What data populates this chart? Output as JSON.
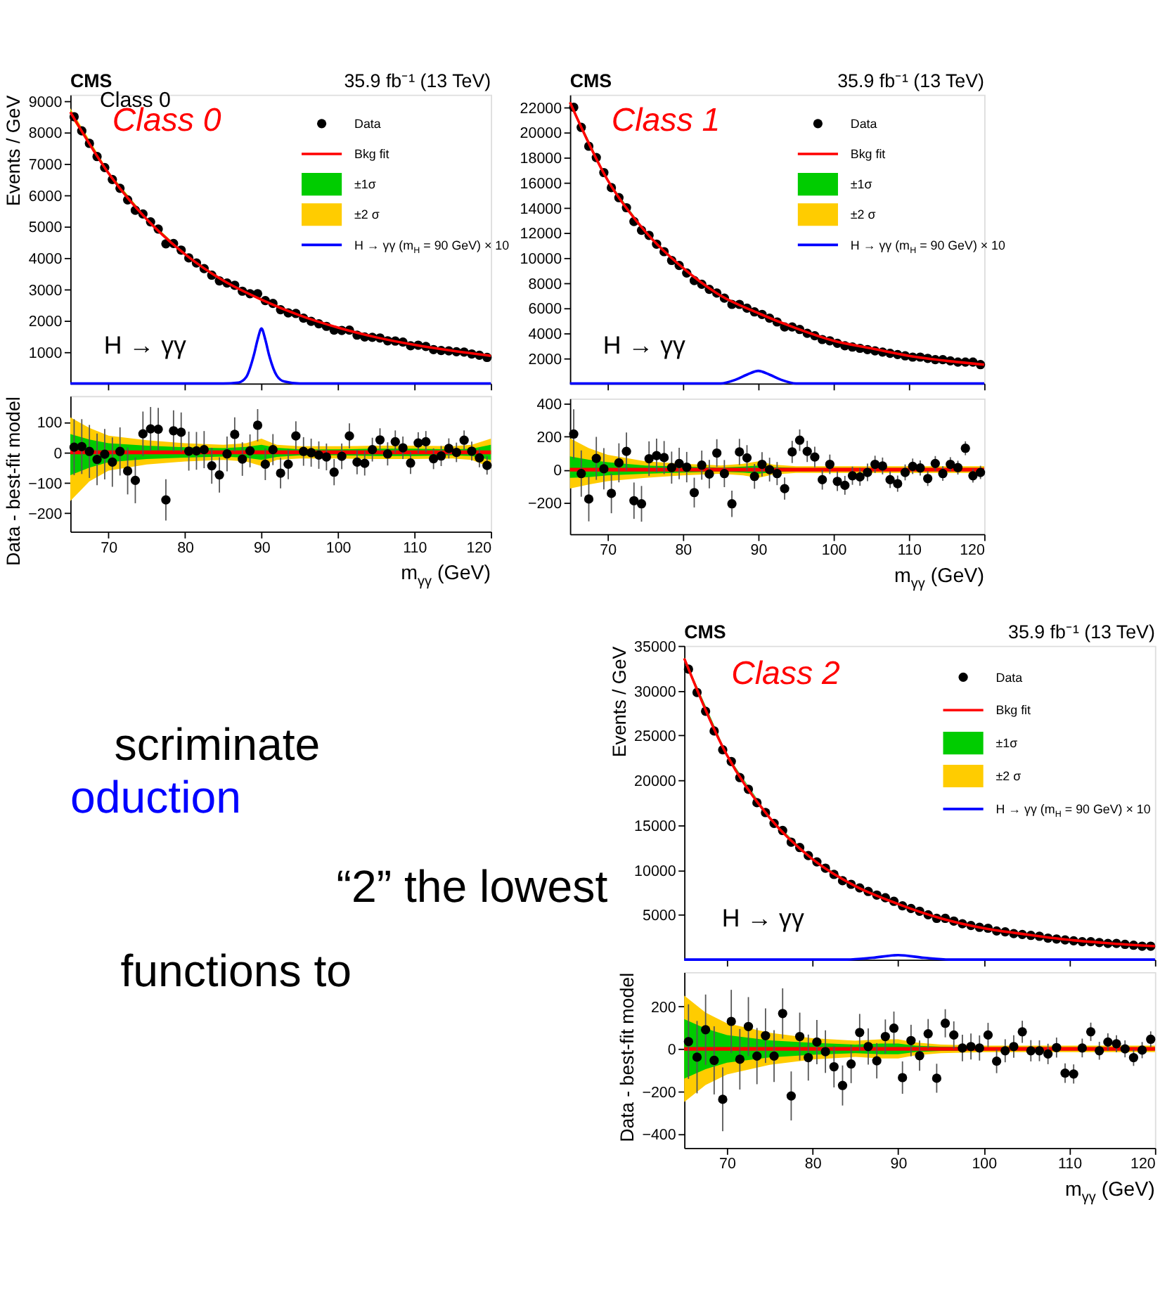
{
  "chart_data": [
    {
      "type": "scatter",
      "title": "CMS",
      "subtitle": "35.9 fb⁻¹ (13 TeV)",
      "ylabel": "Events / GeV",
      "annotations": [
        "Class 0",
        "Class 0",
        "H → γγ"
      ],
      "xlim": [
        65,
        120
      ],
      "xticks": [
        70,
        80,
        90,
        100,
        110,
        120
      ],
      "ylim": [
        0,
        9200
      ],
      "yticks": [
        1000,
        2000,
        3000,
        4000,
        5000,
        6000,
        7000,
        8000,
        9000
      ],
      "tick_labels": "y",
      "legend": "top right",
      "x": [
        65.5,
        66.5,
        67.5,
        68.5,
        69.5,
        70.5,
        71.5,
        72.5,
        73.5,
        74.5,
        75.5,
        76.5,
        77.5,
        78.5,
        79.5,
        80.5,
        81.5,
        82.5,
        83.5,
        84.5,
        85.5,
        86.5,
        87.5,
        88.5,
        89.5,
        90.5,
        91.5,
        92.5,
        93.5,
        94.5,
        95.5,
        96.5,
        97.5,
        98.5,
        99.5,
        100.5,
        101.5,
        102.5,
        103.5,
        104.5,
        105.5,
        106.5,
        107.5,
        108.5,
        109.5,
        110.5,
        111.5,
        112.5,
        113.5,
        114.5,
        115.5,
        116.5,
        117.5,
        118.5,
        119.5
      ],
      "series": [
        {
          "name": "Data",
          "type": "scatter",
          "marker": "circle",
          "color": "#000000",
          "values": [
            8500,
            8050,
            7650,
            7230,
            6880,
            6500,
            6220,
            5850,
            5520,
            5400,
            5150,
            4920,
            4450,
            4460,
            4250,
            4000,
            3840,
            3660,
            3450,
            3270,
            3200,
            3130,
            2940,
            2860,
            2860,
            2640,
            2550,
            2350,
            2250,
            2230,
            2080,
            1980,
            1900,
            1820,
            1700,
            1690,
            1700,
            1540,
            1480,
            1470,
            1450,
            1360,
            1350,
            1320,
            1200,
            1220,
            1180,
            1080,
            1050,
            1040,
            1010,
            1000,
            940,
            900,
            830
          ]
        },
        {
          "name": "Bkg fit",
          "type": "line",
          "color": "#ff0000",
          "x": [
            65,
            70,
            75,
            80,
            85,
            90,
            95,
            100,
            105,
            110,
            115,
            120
          ],
          "values": [
            8650,
            6700,
            5230,
            4120,
            3280,
            2670,
            2170,
            1780,
            1470,
            1230,
            1040,
            880
          ]
        },
        {
          "name": "±1σ",
          "type": "line",
          "color": "#00cc00",
          "x": [
            65,
            70,
            75,
            80,
            85,
            90,
            95,
            100,
            105,
            110,
            115,
            120
          ],
          "values": [
            null,
            null,
            null,
            null,
            null,
            null,
            null,
            null,
            null,
            null,
            null,
            null
          ],
          "lower": [
            8590,
            6670,
            5208,
            4103,
            3266,
            2645,
            2160,
            1770,
            1458,
            1218,
            1030,
            855
          ],
          "upper": [
            8710,
            6730,
            5252,
            4137,
            3294,
            2695,
            2180,
            1790,
            1482,
            1242,
            1050,
            905
          ]
        },
        {
          "name": "±2 σ",
          "type": "line",
          "color": "#ffcc00",
          "x": [
            65,
            70,
            75,
            80,
            85,
            90,
            95,
            100,
            105,
            110,
            115,
            120
          ],
          "values": [
            null,
            null,
            null,
            null,
            null,
            null,
            null,
            null,
            null,
            null,
            null,
            null
          ],
          "lower": [
            8530,
            6645,
            5190,
            4090,
            3255,
            2625,
            2150,
            1760,
            1448,
            1208,
            1020,
            835
          ],
          "upper": [
            8770,
            6755,
            5270,
            4150,
            3305,
            2715,
            2190,
            1800,
            1492,
            1252,
            1060,
            925
          ]
        },
        {
          "name": "H → γγ (m$_{H}$ = 90 GeV) × 10",
          "type": "line",
          "color": "#0000ff",
          "x": [
            65,
            85,
            87,
            88,
            89,
            89.5,
            90,
            90.5,
            91,
            92,
            93,
            95,
            120
          ],
          "values": [
            0,
            0,
            30,
            200,
            900,
            1400,
            1750,
            1400,
            900,
            250,
            60,
            0,
            0
          ]
        }
      ]
    },
    {
      "type": "scatter",
      "xlabel": "m$_{γγ}$ (GeV)",
      "ylabel": "Data - best-fit model",
      "xlim": [
        65,
        120
      ],
      "xticks": [
        70,
        80,
        90,
        100,
        110,
        120
      ],
      "ylim": [
        -260,
        185
      ],
      "yticks": [
        -200,
        -100,
        0,
        100
      ],
      "x": [
        65.5,
        66.5,
        67.5,
        68.5,
        69.5,
        70.5,
        71.5,
        72.5,
        73.5,
        74.5,
        75.5,
        76.5,
        77.5,
        78.5,
        79.5,
        80.5,
        81.5,
        82.5,
        83.5,
        84.5,
        85.5,
        86.5,
        87.5,
        88.5,
        89.5,
        90.5,
        91.5,
        92.5,
        93.5,
        94.5,
        95.5,
        96.5,
        97.5,
        98.5,
        99.5,
        100.5,
        101.5,
        102.5,
        103.5,
        104.5,
        105.5,
        106.5,
        107.5,
        108.5,
        109.5,
        110.5,
        111.5,
        112.5,
        113.5,
        114.5,
        115.5,
        116.5,
        117.5,
        118.5,
        119.5
      ],
      "ref_lines": [
        {
          "axis": "y",
          "value": 0,
          "color": "#ff0000"
        }
      ],
      "series": [
        {
          "type": "line",
          "color": "#ffcc00",
          "x": [
            65,
            67.5,
            70,
            75,
            80,
            85,
            88,
            90,
            92,
            95,
            100,
            105,
            110,
            115,
            117.5,
            120
          ],
          "values": [
            null,
            null,
            null,
            null,
            null,
            null,
            null,
            null,
            null,
            null,
            null,
            null,
            null,
            null,
            null,
            null
          ],
          "lower": [
            -160,
            -95,
            -60,
            -40,
            -30,
            -25,
            -30,
            -45,
            -25,
            -20,
            -20,
            -22,
            -22,
            -20,
            -25,
            -50
          ],
          "upper": [
            115,
            80,
            55,
            40,
            30,
            25,
            30,
            45,
            25,
            20,
            20,
            22,
            22,
            20,
            25,
            45
          ]
        },
        {
          "type": "line",
          "color": "#00cc00",
          "x": [
            65,
            67.5,
            70,
            75,
            80,
            85,
            88,
            90,
            92,
            95,
            100,
            105,
            110,
            115,
            117.5,
            120
          ],
          "values": [
            null,
            null,
            null,
            null,
            null,
            null,
            null,
            null,
            null,
            null,
            null,
            null,
            null,
            null,
            null,
            null
          ],
          "lower": [
            -75,
            -50,
            -32,
            -22,
            -17,
            -14,
            -18,
            -25,
            -15,
            -10,
            -10,
            -12,
            -12,
            -10,
            -12,
            -25
          ],
          "upper": [
            60,
            42,
            30,
            22,
            17,
            14,
            18,
            25,
            15,
            10,
            10,
            12,
            12,
            10,
            12,
            25
          ]
        },
        {
          "type": "scatter",
          "marker": "circle",
          "color": "#000000",
          "values": [
            17,
            19,
            3,
            -23,
            -6,
            -32,
            3,
            -61,
            -92,
            61,
            77,
            76,
            -156,
            71,
            66,
            4,
            5,
            9,
            -44,
            -74,
            -5,
            59,
            -22,
            5,
            89,
            -39,
            9,
            -68,
            -39,
            54,
            3,
            -1,
            -9,
            -15,
            -65,
            -13,
            54,
            -32,
            -36,
            9,
            41,
            -5,
            35,
            15,
            -35,
            31,
            35,
            -21,
            -12,
            13,
            0,
            40,
            4,
            -18,
            -43
          ],
          "errors": [
            92,
            90,
            87,
            85,
            83,
            81,
            79,
            77,
            75,
            73,
            72,
            70,
            68,
            67,
            65,
            64,
            62,
            61,
            59,
            58,
            57,
            56,
            55,
            54,
            53,
            52,
            51,
            50,
            49,
            48,
            47,
            46,
            45,
            44,
            43,
            42,
            41,
            40,
            40,
            39,
            38,
            38,
            37,
            37,
            36,
            35,
            35,
            34,
            33,
            33,
            32,
            32,
            31,
            31,
            30
          ]
        }
      ]
    },
    {
      "type": "scatter",
      "title": "CMS",
      "subtitle": "35.9 fb⁻¹ (13 TeV)",
      "annotations": [
        "Class 1",
        "H → γγ"
      ],
      "xlim": [
        65,
        120
      ],
      "xticks": [
        70,
        80,
        90,
        100,
        110,
        120
      ],
      "ylim": [
        0,
        23000
      ],
      "yticks": [
        2000,
        4000,
        6000,
        8000,
        10000,
        12000,
        14000,
        16000,
        18000,
        20000,
        22000
      ],
      "tick_labels": "y",
      "legend": "top right",
      "x": [
        65.5,
        66.5,
        67.5,
        68.5,
        69.5,
        70.5,
        71.5,
        72.5,
        73.5,
        74.5,
        75.5,
        76.5,
        77.5,
        78.5,
        79.5,
        80.5,
        81.5,
        82.5,
        83.5,
        84.5,
        85.5,
        86.5,
        87.5,
        88.5,
        89.5,
        90.5,
        91.5,
        92.5,
        93.5,
        94.5,
        95.5,
        96.5,
        97.5,
        98.5,
        99.5,
        100.5,
        101.5,
        102.5,
        103.5,
        104.5,
        105.5,
        106.5,
        107.5,
        108.5,
        109.5,
        110.5,
        111.5,
        112.5,
        113.5,
        114.5,
        115.5,
        116.5,
        117.5,
        118.5,
        119.5
      ],
      "series": [
        {
          "name": "Data",
          "type": "scatter",
          "marker": "circle",
          "color": "#000000",
          "values": [
            22000,
            20400,
            18900,
            18000,
            16800,
            15600,
            14800,
            14000,
            12900,
            12200,
            11800,
            11100,
            10500,
            9800,
            9400,
            8800,
            8200,
            7900,
            7500,
            7200,
            6800,
            6300,
            6300,
            6000,
            5700,
            5500,
            5200,
            4900,
            4500,
            4500,
            4300,
            4000,
            3800,
            3500,
            3400,
            3200,
            3000,
            2900,
            2800,
            2700,
            2600,
            2500,
            2400,
            2300,
            2200,
            2100,
            2100,
            2000,
            1900,
            1900,
            1800,
            1700,
            1700,
            1700,
            1500
          ]
        },
        {
          "name": "Bkg fit",
          "type": "line",
          "color": "#ff0000",
          "x": [
            65,
            70,
            75,
            80,
            85,
            90,
            95,
            100,
            105,
            110,
            115,
            120
          ],
          "values": [
            22400,
            16200,
            12100,
            9200,
            7000,
            5600,
            4400,
            3400,
            2800,
            2200,
            1800,
            1500
          ]
        },
        {
          "name": "±1σ",
          "type": "line",
          "color": "#00cc00",
          "x": [
            65,
            70,
            75,
            80,
            85,
            90,
            95,
            100,
            105,
            110,
            115,
            120
          ],
          "values": [
            null,
            null,
            null,
            null,
            null,
            null,
            null,
            null,
            null,
            null,
            null,
            null
          ],
          "lower": [
            22350,
            16160,
            12075,
            9182,
            6988,
            5575,
            4390,
            3390,
            2790,
            2190,
            1790,
            1490
          ],
          "upper": [
            22480,
            16240,
            12125,
            9218,
            7012,
            5625,
            4410,
            3410,
            2810,
            2210,
            1810,
            1510
          ]
        },
        {
          "name": "±2 σ",
          "type": "area",
          "color": "#ffcc00",
          "values": [
            null,
            null,
            null,
            null,
            null,
            null,
            null,
            null,
            null,
            null,
            null,
            null,
            null,
            null,
            null,
            null,
            null,
            null,
            null,
            null,
            null,
            null,
            null,
            null,
            null,
            null,
            null,
            null,
            null,
            null,
            null,
            null,
            null,
            null,
            null,
            null,
            null,
            null,
            null,
            null,
            null,
            null,
            null,
            null,
            null,
            null,
            null,
            null,
            null,
            null,
            null,
            null,
            null,
            null,
            null
          ]
        },
        {
          "name": "H → γγ (m$_{H}$ = 90 GeV) × 10",
          "type": "line",
          "color": "#0000ff",
          "x": [
            65,
            82,
            85,
            87,
            88.5,
            90,
            91.5,
            93,
            95,
            97,
            120
          ],
          "values": [
            0,
            0,
            0,
            300,
            700,
            1000,
            700,
            300,
            0,
            0,
            0
          ]
        }
      ]
    },
    {
      "type": "scatter",
      "xlabel": "m$_{γγ}$ (GeV)",
      "xlim": [
        65,
        120
      ],
      "xticks": [
        70,
        80,
        90,
        100,
        110,
        120
      ],
      "ylim": [
        -390,
        430
      ],
      "yticks": [
        -200,
        0,
        200,
        400
      ],
      "x": [
        65.5,
        66.5,
        67.5,
        68.5,
        69.5,
        70.5,
        71.5,
        72.5,
        73.5,
        74.5,
        75.5,
        76.5,
        77.5,
        78.5,
        79.5,
        80.5,
        81.5,
        82.5,
        83.5,
        84.5,
        85.5,
        86.5,
        87.5,
        88.5,
        89.5,
        90.5,
        91.5,
        92.5,
        93.5,
        94.5,
        95.5,
        96.5,
        97.5,
        98.5,
        99.5,
        100.5,
        101.5,
        102.5,
        103.5,
        104.5,
        105.5,
        106.5,
        107.5,
        108.5,
        109.5,
        110.5,
        111.5,
        112.5,
        113.5,
        114.5,
        115.5,
        116.5,
        117.5,
        118.5,
        119.5
      ],
      "ref_lines": [
        {
          "axis": "y",
          "value": 0,
          "color": "#ff0000"
        }
      ],
      "series": [
        {
          "type": "line",
          "color": "#ffcc00",
          "x": [
            65,
            67.5,
            70,
            75,
            80,
            85,
            88,
            90,
            92,
            95,
            100,
            105,
            110,
            115,
            117.5,
            120
          ],
          "values": [
            null,
            null,
            null,
            null,
            null,
            null,
            null,
            null,
            null,
            null,
            null,
            null,
            null,
            null,
            null,
            null
          ],
          "lower": [
            -115,
            -90,
            -70,
            -50,
            -35,
            -25,
            -35,
            -50,
            -30,
            -20,
            -20,
            -20,
            -20,
            -20,
            -20,
            -20
          ],
          "upper": [
            190,
            130,
            90,
            50,
            35,
            25,
            35,
            50,
            30,
            20,
            20,
            20,
            20,
            20,
            20,
            20
          ]
        },
        {
          "type": "line",
          "color": "#00cc00",
          "x": [
            65,
            67.5,
            70,
            75,
            80,
            85,
            88,
            90,
            92,
            95,
            100,
            105,
            110,
            115,
            117.5,
            120
          ],
          "values": [
            null,
            null,
            null,
            null,
            null,
            null,
            null,
            null,
            null,
            null,
            null,
            null,
            null,
            null,
            null,
            null
          ],
          "lower": [
            -50,
            -45,
            -35,
            -25,
            -18,
            -12,
            -18,
            -25,
            -15,
            -10,
            -10,
            -10,
            -10,
            -10,
            -10,
            -10
          ],
          "upper": [
            80,
            60,
            45,
            25,
            18,
            12,
            18,
            25,
            15,
            10,
            10,
            10,
            10,
            10,
            10,
            10
          ]
        },
        {
          "type": "scatter",
          "marker": "circle",
          "color": "#000000",
          "values": [
            215,
            -24,
            -178,
            68,
            5,
            -144,
            41,
            110,
            -188,
            -207,
            66,
            85,
            73,
            12,
            37,
            15,
            -139,
            27,
            -27,
            100,
            -24,
            -207,
            107,
            71,
            -41,
            32,
            0,
            -24,
            -115,
            107,
            178,
            110,
            76,
            -61,
            32,
            -71,
            -95,
            -37,
            -44,
            -17,
            32,
            22,
            -61,
            -85,
            -17,
            20,
            10,
            -54,
            37,
            -24,
            32,
            12,
            129,
            -37,
            -17
          ],
          "errors": [
            150,
            140,
            135,
            130,
            125,
            120,
            118,
            115,
            110,
            108,
            105,
            102,
            100,
            97,
            95,
            92,
            90,
            88,
            86,
            84,
            82,
            80,
            79,
            77,
            75,
            74,
            72,
            70,
            67,
            67,
            65,
            64,
            62,
            60,
            59,
            58,
            57,
            55,
            54,
            53,
            52,
            51,
            50,
            49,
            48,
            47,
            46,
            45,
            45,
            44,
            43,
            42,
            42,
            41,
            40
          ]
        }
      ]
    },
    {
      "type": "other",
      "annotations": [
        "scriminate",
        "oduction",
        "“2” the lowest",
        "functions to"
      ],
      "colors": [
        "#000000",
        "#0000ff",
        "#000000",
        "#000000"
      ]
    },
    {
      "type": "scatter",
      "title": "CMS",
      "subtitle": "35.9 fb⁻¹ (13 TeV)",
      "ylabel": "Events / GeV",
      "annotations": [
        "Class 2",
        "H → γγ"
      ],
      "xlim": [
        65,
        120
      ],
      "xticks": [
        70,
        80,
        90,
        100,
        110,
        120
      ],
      "ylim": [
        0,
        35000
      ],
      "yticks": [
        5000,
        10000,
        15000,
        20000,
        25000,
        30000,
        35000
      ],
      "tick_labels": "y",
      "legend": "top right",
      "x": [
        65.5,
        66.5,
        67.5,
        68.5,
        69.5,
        70.5,
        71.5,
        72.5,
        73.5,
        74.5,
        75.5,
        76.5,
        77.5,
        78.5,
        79.5,
        80.5,
        81.5,
        82.5,
        83.5,
        84.5,
        85.5,
        86.5,
        87.5,
        88.5,
        89.5,
        90.5,
        91.5,
        92.5,
        93.5,
        94.5,
        95.5,
        96.5,
        97.5,
        98.5,
        99.5,
        100.5,
        101.5,
        102.5,
        103.5,
        104.5,
        105.5,
        106.5,
        107.5,
        108.5,
        109.5,
        110.5,
        111.5,
        112.5,
        113.5,
        114.5,
        115.5,
        116.5,
        117.5,
        118.5,
        119.5
      ],
      "series": [
        {
          "name": "Data",
          "type": "scatter",
          "marker": "circle",
          "color": "#000000",
          "values": [
            32400,
            29800,
            27700,
            25500,
            23400,
            22100,
            20300,
            19000,
            17500,
            16400,
            15200,
            14400,
            13100,
            12500,
            11600,
            10900,
            10200,
            9500,
            8800,
            8400,
            8000,
            7600,
            7200,
            6900,
            6500,
            6000,
            5700,
            5400,
            5000,
            4600,
            4600,
            4300,
            4000,
            3800,
            3600,
            3500,
            3200,
            3100,
            2900,
            2800,
            2700,
            2600,
            2400,
            2300,
            2200,
            2100,
            2000,
            2000,
            1900,
            1800,
            1800,
            1700,
            1600,
            1500,
            1500
          ]
        },
        {
          "name": "Bkg fit",
          "type": "line",
          "color": "#ff0000",
          "x": [
            65,
            70,
            75,
            80,
            85,
            90,
            95,
            100,
            105,
            110,
            115,
            120
          ],
          "values": [
            33600,
            22800,
            15800,
            11200,
            8200,
            6200,
            4600,
            3500,
            2800,
            2200,
            1800,
            1500
          ]
        },
        {
          "name": "±1σ",
          "type": "line",
          "color": "#00cc00",
          "x": [
            65,
            70,
            75,
            80,
            85,
            90,
            95,
            100,
            105,
            110,
            115,
            120
          ],
          "values": [
            null,
            null,
            null,
            null,
            null,
            null,
            null,
            null,
            null,
            null,
            null,
            null
          ],
          "lower": [
            33460,
            22735,
            15760,
            11172,
            8180,
            6175,
            4590,
            3492,
            2792,
            2192,
            1792,
            1492
          ],
          "upper": [
            33740,
            22865,
            15840,
            11228,
            8220,
            6225,
            4610,
            3508,
            2808,
            2208,
            1808,
            1508
          ]
        },
        {
          "name": "±2 σ",
          "type": "area",
          "color": "#ffcc00",
          "values": [
            null,
            null,
            null,
            null,
            null,
            null,
            null,
            null,
            null,
            null,
            null,
            null,
            null,
            null,
            null,
            null,
            null,
            null,
            null,
            null,
            null,
            null,
            null,
            null,
            null,
            null,
            null,
            null,
            null,
            null,
            null,
            null,
            null,
            null,
            null,
            null,
            null,
            null,
            null,
            null,
            null,
            null,
            null,
            null,
            null,
            null,
            null,
            null,
            null,
            null,
            null,
            null,
            null,
            null,
            null
          ]
        },
        {
          "name": "H → γγ (m$_{H}$ = 90 GeV) × 10",
          "type": "line",
          "color": "#0000ff",
          "x": [
            65,
            84,
            87,
            90,
            93,
            96,
            120
          ],
          "values": [
            0,
            0,
            200,
            500,
            200,
            0,
            0
          ]
        }
      ]
    },
    {
      "type": "scatter",
      "xlabel": "m$_{γγ}$ (GeV)",
      "ylabel": "Data - best-fit model",
      "xlim": [
        65,
        120
      ],
      "xticks": [
        70,
        80,
        90,
        100,
        110,
        120
      ],
      "ylim": [
        -465,
        360
      ],
      "yticks": [
        -400,
        -200,
        0,
        200
      ],
      "x": [
        65.5,
        66.5,
        67.5,
        68.5,
        69.5,
        70.5,
        71.5,
        72.5,
        73.5,
        74.5,
        75.5,
        76.5,
        77.5,
        78.5,
        79.5,
        80.5,
        81.5,
        82.5,
        83.5,
        84.5,
        85.5,
        86.5,
        87.5,
        88.5,
        89.5,
        90.5,
        91.5,
        92.5,
        93.5,
        94.5,
        95.5,
        96.5,
        97.5,
        98.5,
        99.5,
        100.5,
        101.5,
        102.5,
        103.5,
        104.5,
        105.5,
        106.5,
        107.5,
        108.5,
        109.5,
        110.5,
        111.5,
        112.5,
        113.5,
        114.5,
        115.5,
        116.5,
        117.5,
        118.5,
        119.5
      ],
      "ref_lines": [
        {
          "axis": "y",
          "value": 0,
          "color": "#ff0000"
        }
      ],
      "series": [
        {
          "type": "line",
          "color": "#ffcc00",
          "x": [
            65,
            67.5,
            70,
            75,
            80,
            85,
            88,
            90,
            92,
            95,
            100,
            105,
            110,
            115,
            117.5,
            120
          ],
          "values": [
            null,
            null,
            null,
            null,
            null,
            null,
            null,
            null,
            null,
            null,
            null,
            null,
            null,
            null,
            null,
            null
          ],
          "lower": [
            -250,
            -170,
            -120,
            -75,
            -50,
            -38,
            -45,
            -45,
            -30,
            -20,
            -15,
            -15,
            -15,
            -15,
            -15,
            -15
          ],
          "upper": [
            250,
            170,
            120,
            75,
            50,
            38,
            45,
            45,
            30,
            20,
            15,
            15,
            15,
            15,
            15,
            15
          ]
        },
        {
          "type": "line",
          "color": "#00cc00",
          "x": [
            65,
            67.5,
            70,
            75,
            80,
            85,
            88,
            90,
            92,
            95,
            100,
            105,
            110,
            115,
            117.5,
            120
          ],
          "values": [
            null,
            null,
            null,
            null,
            null,
            null,
            null,
            null,
            null,
            null,
            null,
            null,
            null,
            null,
            null,
            null
          ],
          "lower": [
            -140,
            -95,
            -65,
            -40,
            -28,
            -20,
            -25,
            -25,
            -15,
            -10,
            -8,
            -8,
            -8,
            -8,
            -8,
            -8
          ],
          "upper": [
            140,
            95,
            65,
            40,
            28,
            20,
            25,
            25,
            15,
            10,
            8,
            8,
            8,
            8,
            8,
            8
          ]
        },
        {
          "type": "scatter",
          "marker": "circle",
          "color": "#000000",
          "values": [
            34,
            -39,
            90,
            -54,
            -237,
            129,
            -49,
            105,
            -34,
            62,
            -34,
            166,
            -221,
            58,
            -41,
            32,
            -13,
            -84,
            -172,
            -71,
            77,
            11,
            -56,
            58,
            97,
            -135,
            39,
            -32,
            71,
            -138,
            120,
            65,
            4,
            11,
            4,
            65,
            -58,
            -9,
            11,
            80,
            -9,
            -9,
            -24,
            6,
            -114,
            -118,
            4,
            80,
            -9,
            32,
            24,
            0,
            -41,
            -6,
            45
          ],
          "errors": [
            175,
            170,
            165,
            160,
            150,
            148,
            142,
            138,
            132,
            128,
            122,
            118,
            115,
            112,
            108,
            104,
            100,
            97,
            94,
            90,
            87,
            85,
            83,
            80,
            78,
            76,
            74,
            71,
            69,
            68,
            66,
            64,
            62,
            61,
            59,
            57,
            56,
            54,
            53,
            52,
            50,
            49,
            48,
            47,
            46,
            45,
            44,
            43,
            42,
            41,
            40,
            40,
            39,
            38,
            37
          ]
        }
      ]
    }
  ]
}
